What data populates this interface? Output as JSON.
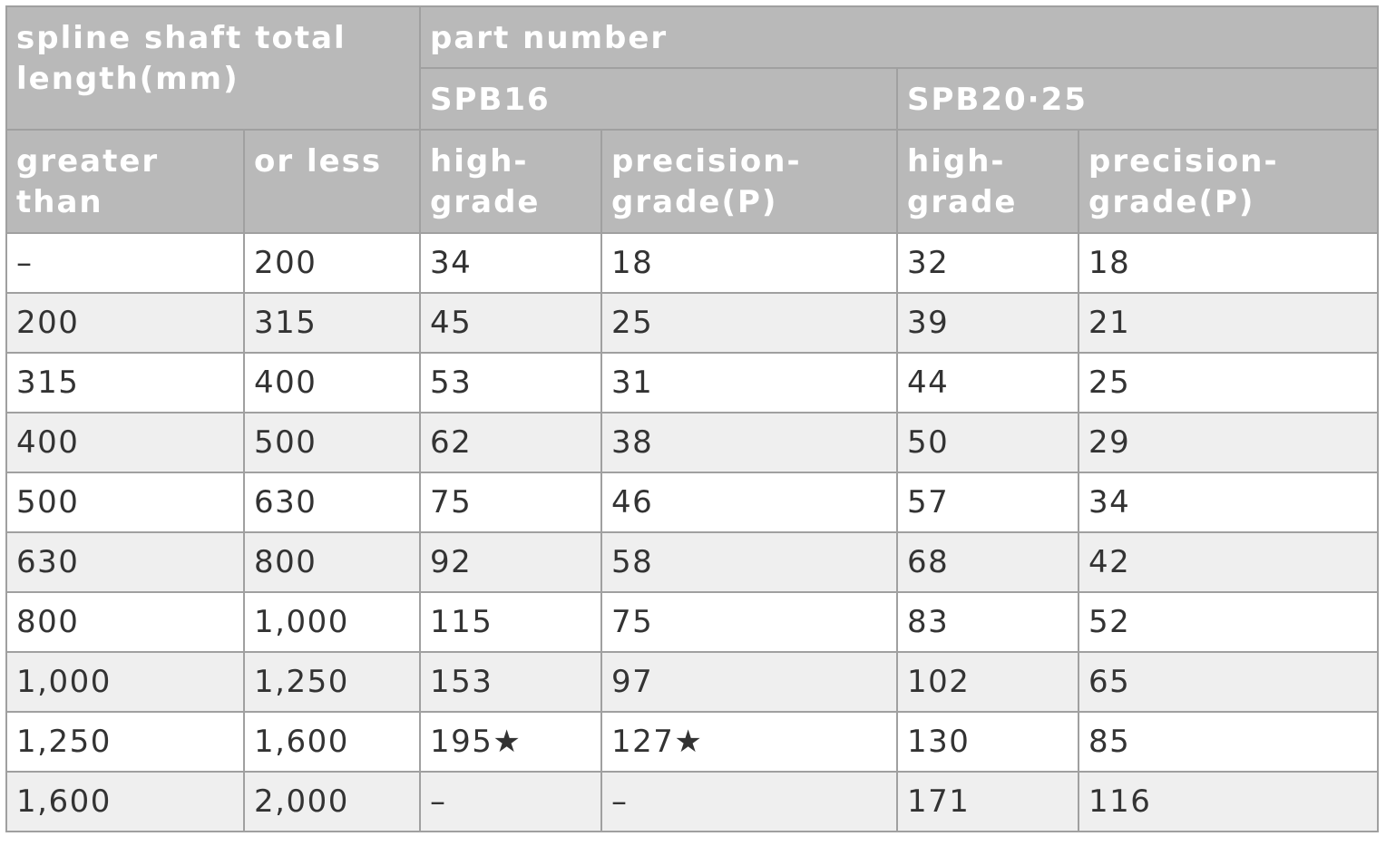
{
  "header": {
    "group": "spline shaft total length(mm)",
    "part_number": "part number",
    "models": [
      "SPB16",
      "SPB20·25"
    ],
    "columns": [
      "greater than",
      "or less",
      "high-grade",
      "precision-grade(P)",
      "high-grade",
      "precision-grade(P)"
    ]
  },
  "table": {
    "rows": [
      [
        "–",
        "200",
        "34",
        "18",
        "32",
        "18"
      ],
      [
        "200",
        "315",
        "45",
        "25",
        "39",
        "21"
      ],
      [
        "315",
        "400",
        "53",
        "31",
        "44",
        "25"
      ],
      [
        "400",
        "500",
        "62",
        "38",
        "50",
        "29"
      ],
      [
        "500",
        "630",
        "75",
        "46",
        "57",
        "34"
      ],
      [
        "630",
        "800",
        "92",
        "58",
        "68",
        "42"
      ],
      [
        "800",
        "1,000",
        "115",
        "75",
        "83",
        "52"
      ],
      [
        "1,000",
        "1,250",
        "153",
        "97",
        "102",
        "65"
      ],
      [
        "1,250",
        "1,600",
        "195★",
        "127★",
        "130",
        "85"
      ],
      [
        "1,600",
        "2,000",
        "–",
        "–",
        "171",
        "116"
      ]
    ]
  }
}
